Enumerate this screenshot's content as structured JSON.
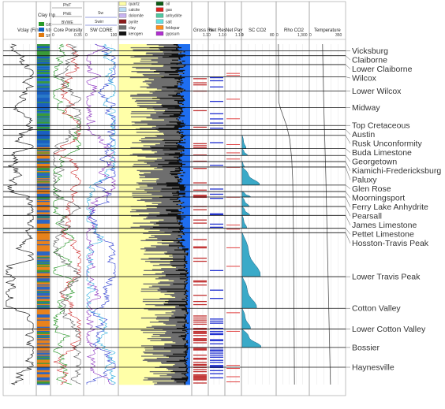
{
  "tracks": {
    "vclay": {
      "title": "Vclay (Final)"
    },
    "lith": {
      "title": "Clay Inp",
      "legend": [
        "GR",
        "ND",
        "SP"
      ]
    },
    "poro": {
      "curves": [
        "PhiT",
        "PhiE",
        "BVWE"
      ],
      "title": "Core Porosity",
      "scale_min": "0",
      "scale_max": "0.35"
    },
    "sw": {
      "curves": [
        "Sw",
        "Swirr"
      ],
      "title": "SW CORE",
      "scale_min": "0",
      "scale_max": "100"
    },
    "mineral": {
      "legend": [
        {
          "label": "quartz",
          "color": "#ffffa8"
        },
        {
          "label": "calcite",
          "color": "#b8dcf5"
        },
        {
          "label": "dolomite",
          "color": "#c8b4f0"
        },
        {
          "label": "pyrite",
          "color": "#8b1a1a"
        },
        {
          "label": "clay",
          "color": "#6e6e6e"
        },
        {
          "label": "kerogen",
          "color": "#111111"
        },
        {
          "label": "oil",
          "color": "#0a5a14"
        },
        {
          "label": "gas",
          "color": "#e02020"
        },
        {
          "label": "anhydrite",
          "color": "#50c8a0"
        },
        {
          "label": "salt",
          "color": "#60e0e0"
        },
        {
          "label": "feldspar",
          "color": "#ff8c1a"
        },
        {
          "label": "gypsum",
          "color": "#b030d0"
        }
      ],
      "fluid_fill": "#1e6ef0"
    },
    "gross": {
      "title": "Gross Re",
      "scale": "1.10"
    },
    "netres": {
      "title": "Net Res",
      "scale": "1.10"
    },
    "netpay": {
      "title": "Net Pay",
      "scale": "1.10"
    },
    "sco2": {
      "title": "SC CO2",
      "scale_min": "0",
      "scale_max": "80"
    },
    "rho": {
      "title": "Rho CO2",
      "scale_min": "0",
      "scale_max": "1,300"
    },
    "temp": {
      "title": "Temperature",
      "scale_min": "0",
      "scale_max": "350"
    }
  },
  "chart_data": {
    "type": "area",
    "y_axis": "depth (relative, top to bottom)",
    "formations": [
      {
        "name": "Vicksburg",
        "top": 0.02
      },
      {
        "name": "Claiborne",
        "top": 0.034
      },
      {
        "name": "Lower Claiborne",
        "top": 0.06
      },
      {
        "name": "Wilcox",
        "top": 0.096
      },
      {
        "name": "Lower Wilcox",
        "top": 0.138
      },
      {
        "name": "Midway",
        "top": 0.186
      },
      {
        "name": "Top Cretaceous",
        "top": 0.239
      },
      {
        "name": "Austin",
        "top": 0.251
      },
      {
        "name": "Rusk Unconformity",
        "top": 0.268
      },
      {
        "name": "Buda Limestone",
        "top": 0.307
      },
      {
        "name": "Georgetown",
        "top": 0.327
      },
      {
        "name": "Kiamichi-Fredericksburg",
        "top": 0.345
      },
      {
        "name": "Paluxy",
        "top": 0.361
      },
      {
        "name": "Glen Rose",
        "top": 0.414
      },
      {
        "name": "Moorningsport",
        "top": 0.433
      },
      {
        "name": "Ferry Lake Anhydrite",
        "top": 0.449
      },
      {
        "name": "Pearsall",
        "top": 0.477
      },
      {
        "name": "James Limestone",
        "top": 0.503
      },
      {
        "name": "Pettet Limestone",
        "top": 0.541
      },
      {
        "name": "Hosston-Travis Peak",
        "top": 0.554
      },
      {
        "name": "Lower Travis Peak",
        "top": 0.683
      },
      {
        "name": "Cotton Valley",
        "top": 0.776
      },
      {
        "name": "Lower Cotton Valley",
        "top": 0.837
      },
      {
        "name": "Bossier",
        "top": 0.891
      },
      {
        "name": "Haynesville",
        "top": 0.949
      }
    ],
    "sc_co2_profile": [
      {
        "from": 0.268,
        "to": 0.307,
        "max": 10
      },
      {
        "from": 0.307,
        "to": 0.327,
        "max": 14
      },
      {
        "from": 0.345,
        "to": 0.361,
        "max": 6
      },
      {
        "from": 0.361,
        "to": 0.414,
        "max": 46
      },
      {
        "from": 0.433,
        "to": 0.449,
        "max": 22
      },
      {
        "from": 0.449,
        "to": 0.477,
        "max": 18
      },
      {
        "from": 0.477,
        "to": 0.503,
        "max": 20
      },
      {
        "from": 0.503,
        "to": 0.541,
        "max": 12
      },
      {
        "from": 0.554,
        "to": 0.683,
        "max": 48
      },
      {
        "from": 0.683,
        "to": 0.776,
        "max": 38
      },
      {
        "from": 0.776,
        "to": 0.837,
        "max": 22
      },
      {
        "from": 0.837,
        "to": 0.891,
        "max": 50
      }
    ],
    "rho_co2_curve": [
      [
        0,
        60
      ],
      [
        0.1,
        70
      ],
      [
        0.17,
        75
      ],
      [
        0.19,
        150
      ],
      [
        0.24,
        400
      ],
      [
        0.28,
        530
      ],
      [
        0.34,
        610
      ],
      [
        0.4,
        650
      ],
      [
        0.55,
        680
      ],
      [
        0.75,
        700
      ],
      [
        1.0,
        720
      ]
    ],
    "temperature_curve": [
      [
        0,
        125
      ],
      [
        0.2,
        140
      ],
      [
        0.4,
        160
      ],
      [
        0.6,
        175
      ],
      [
        0.8,
        190
      ],
      [
        1.0,
        205
      ]
    ]
  }
}
